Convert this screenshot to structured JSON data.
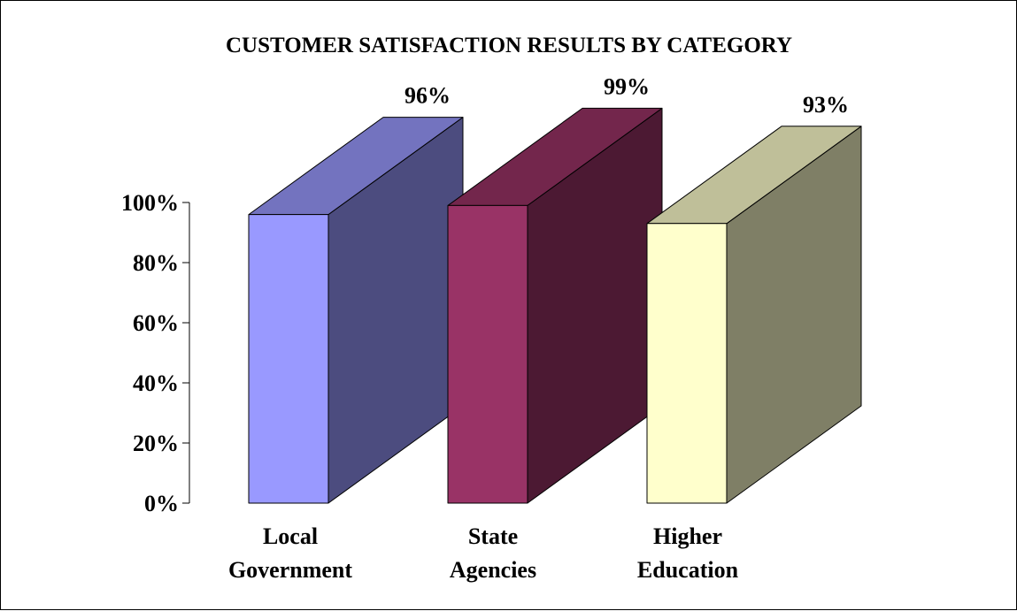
{
  "chart_data": {
    "type": "bar",
    "style": "3d",
    "title": "CUSTOMER SATISFACTION RESULTS BY CATEGORY",
    "xlabel": "",
    "ylabel": "",
    "ylim": [
      0,
      100
    ],
    "yticks": [
      "0%",
      "20%",
      "40%",
      "60%",
      "80%",
      "100%"
    ],
    "ytick_values": [
      0,
      20,
      40,
      60,
      80,
      100
    ],
    "grid": false,
    "legend": "none",
    "categories": [
      [
        "Local",
        "Government"
      ],
      [
        "State",
        "Agencies"
      ],
      [
        "Higher",
        "Education"
      ]
    ],
    "values": [
      96,
      99,
      93
    ],
    "data_labels": [
      "96%",
      "99%",
      "93%"
    ],
    "colors": [
      {
        "front": "#9999FF",
        "top": "#7373BF",
        "side": "#4C4C7F"
      },
      {
        "front": "#993366",
        "top": "#73264C",
        "side": "#4C1933"
      },
      {
        "front": "#FFFFCC",
        "top": "#BFBF99",
        "side": "#7F7F66"
      }
    ]
  }
}
